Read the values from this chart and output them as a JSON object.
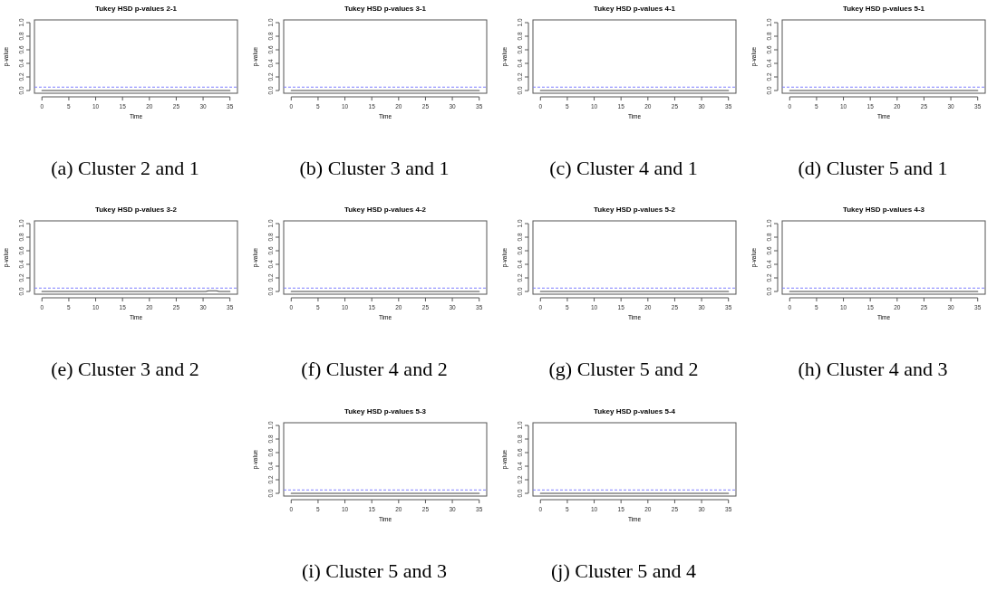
{
  "chart_data": [
    {
      "type": "line",
      "title": "Tukey HSD p-values 2-1",
      "xlabel": "Time",
      "ylabel": "p-value",
      "annotations": [
        "(a) Cluster 2 and 1"
      ],
      "xlim": [
        -1.4,
        36.4
      ],
      "ylim": [
        -0.04,
        1.04
      ],
      "xticks": [
        0,
        5,
        10,
        15,
        20,
        25,
        30,
        35
      ],
      "yticks": [
        {
          "value": 0,
          "label": "0.0"
        },
        {
          "value": 0.2,
          "label": "0.2"
        },
        {
          "value": 0.4,
          "label": "0.4"
        },
        {
          "value": 0.6,
          "label": "0.6"
        },
        {
          "value": 0.8,
          "label": "0.8"
        },
        {
          "value": 1,
          "label": "1.0"
        }
      ],
      "series": [
        {
          "color": "#444444",
          "x": [
            0,
            35
          ],
          "values": [
            0,
            0
          ]
        }
      ],
      "ref_lines": [
        {
          "axis": "y",
          "value": 0.05,
          "color": "#7f7fff",
          "line_style": "dashed"
        }
      ]
    },
    {
      "type": "line",
      "title": "Tukey HSD p-values 3-1",
      "xlabel": "Time",
      "ylabel": "p-value",
      "annotations": [
        "(b) Cluster 3 and 1"
      ],
      "xlim": [
        -1.4,
        36.4
      ],
      "ylim": [
        -0.04,
        1.04
      ],
      "xticks": [
        0,
        5,
        10,
        15,
        20,
        25,
        30,
        35
      ],
      "yticks": [
        {
          "value": 0,
          "label": "0.0"
        },
        {
          "value": 0.2,
          "label": "0.2"
        },
        {
          "value": 0.4,
          "label": "0.4"
        },
        {
          "value": 0.6,
          "label": "0.6"
        },
        {
          "value": 0.8,
          "label": "0.8"
        },
        {
          "value": 1,
          "label": "1.0"
        }
      ],
      "series": [
        {
          "color": "#444444",
          "x": [
            0,
            35
          ],
          "values": [
            0,
            0
          ]
        }
      ],
      "ref_lines": [
        {
          "axis": "y",
          "value": 0.05,
          "color": "#7f7fff",
          "line_style": "dashed"
        }
      ]
    },
    {
      "type": "line",
      "title": "Tukey HSD p-values 4-1",
      "xlabel": "Time",
      "ylabel": "p-value",
      "annotations": [
        "(c) Cluster 4 and 1"
      ],
      "xlim": [
        -1.4,
        36.4
      ],
      "ylim": [
        -0.04,
        1.04
      ],
      "xticks": [
        0,
        5,
        10,
        15,
        20,
        25,
        30,
        35
      ],
      "yticks": [
        {
          "value": 0,
          "label": "0.0"
        },
        {
          "value": 0.2,
          "label": "0.2"
        },
        {
          "value": 0.4,
          "label": "0.4"
        },
        {
          "value": 0.6,
          "label": "0.6"
        },
        {
          "value": 0.8,
          "label": "0.8"
        },
        {
          "value": 1,
          "label": "1.0"
        }
      ],
      "series": [
        {
          "color": "#444444",
          "x": [
            0,
            35
          ],
          "values": [
            0,
            0
          ]
        }
      ],
      "ref_lines": [
        {
          "axis": "y",
          "value": 0.05,
          "color": "#7f7fff",
          "line_style": "dashed"
        }
      ]
    },
    {
      "type": "line",
      "title": "Tukey HSD p-values 5-1",
      "xlabel": "Time",
      "ylabel": "p-value",
      "annotations": [
        "(d) Cluster 5 and 1"
      ],
      "xlim": [
        -1.4,
        36.4
      ],
      "ylim": [
        -0.04,
        1.04
      ],
      "xticks": [
        0,
        5,
        10,
        15,
        20,
        25,
        30,
        35
      ],
      "yticks": [
        {
          "value": 0,
          "label": "0.0"
        },
        {
          "value": 0.2,
          "label": "0.2"
        },
        {
          "value": 0.4,
          "label": "0.4"
        },
        {
          "value": 0.6,
          "label": "0.6"
        },
        {
          "value": 0.8,
          "label": "0.8"
        },
        {
          "value": 1,
          "label": "1.0"
        }
      ],
      "series": [
        {
          "color": "#444444",
          "x": [
            0,
            35
          ],
          "values": [
            0,
            0
          ]
        }
      ],
      "ref_lines": [
        {
          "axis": "y",
          "value": 0.05,
          "color": "#7f7fff",
          "line_style": "dashed"
        }
      ]
    },
    {
      "type": "line",
      "title": "Tukey HSD p-values 3-2",
      "xlabel": "Time",
      "ylabel": "p-value",
      "annotations": [
        "(e) Cluster 3 and 2"
      ],
      "xlim": [
        -1.4,
        36.4
      ],
      "ylim": [
        -0.04,
        1.04
      ],
      "xticks": [
        0,
        5,
        10,
        15,
        20,
        25,
        30,
        35
      ],
      "yticks": [
        {
          "value": 0,
          "label": "0.0"
        },
        {
          "value": 0.2,
          "label": "0.2"
        },
        {
          "value": 0.4,
          "label": "0.4"
        },
        {
          "value": 0.6,
          "label": "0.6"
        },
        {
          "value": 0.8,
          "label": "0.8"
        },
        {
          "value": 1,
          "label": "1.0"
        }
      ],
      "series": [
        {
          "color": "#444444",
          "x": [
            0,
            30.5,
            31,
            32.5,
            33,
            35
          ],
          "values": [
            0,
            0,
            0.01,
            0.01,
            0,
            0
          ]
        }
      ],
      "ref_lines": [
        {
          "axis": "y",
          "value": 0.05,
          "color": "#7f7fff",
          "line_style": "dashed"
        }
      ]
    },
    {
      "type": "line",
      "title": "Tukey HSD p-values 4-2",
      "xlabel": "Time",
      "ylabel": "p-value",
      "annotations": [
        "(f) Cluster 4 and 2"
      ],
      "xlim": [
        -1.4,
        36.4
      ],
      "ylim": [
        -0.04,
        1.04
      ],
      "xticks": [
        0,
        5,
        10,
        15,
        20,
        25,
        30,
        35
      ],
      "yticks": [
        {
          "value": 0,
          "label": "0.0"
        },
        {
          "value": 0.2,
          "label": "0.2"
        },
        {
          "value": 0.4,
          "label": "0.4"
        },
        {
          "value": 0.6,
          "label": "0.6"
        },
        {
          "value": 0.8,
          "label": "0.8"
        },
        {
          "value": 1,
          "label": "1.0"
        }
      ],
      "series": [
        {
          "color": "#444444",
          "x": [
            0,
            35
          ],
          "values": [
            0,
            0
          ]
        }
      ],
      "ref_lines": [
        {
          "axis": "y",
          "value": 0.05,
          "color": "#7f7fff",
          "line_style": "dashed"
        }
      ]
    },
    {
      "type": "line",
      "title": "Tukey HSD p-values 5-2",
      "xlabel": "Time",
      "ylabel": "p-value",
      "annotations": [
        "(g) Cluster 5 and 2"
      ],
      "xlim": [
        -1.4,
        36.4
      ],
      "ylim": [
        -0.04,
        1.04
      ],
      "xticks": [
        0,
        5,
        10,
        15,
        20,
        25,
        30,
        35
      ],
      "yticks": [
        {
          "value": 0,
          "label": "0.0"
        },
        {
          "value": 0.2,
          "label": "0.2"
        },
        {
          "value": 0.4,
          "label": "0.4"
        },
        {
          "value": 0.6,
          "label": "0.6"
        },
        {
          "value": 0.8,
          "label": "0.8"
        },
        {
          "value": 1,
          "label": "1.0"
        }
      ],
      "series": [
        {
          "color": "#444444",
          "x": [
            0,
            35
          ],
          "values": [
            0,
            0
          ]
        }
      ],
      "ref_lines": [
        {
          "axis": "y",
          "value": 0.05,
          "color": "#7f7fff",
          "line_style": "dashed"
        }
      ]
    },
    {
      "type": "line",
      "title": "Tukey HSD p-values 4-3",
      "xlabel": "Time",
      "ylabel": "p-value",
      "annotations": [
        "(h) Cluster 4 and 3"
      ],
      "xlim": [
        -1.4,
        36.4
      ],
      "ylim": [
        -0.04,
        1.04
      ],
      "xticks": [
        0,
        5,
        10,
        15,
        20,
        25,
        30,
        35
      ],
      "yticks": [
        {
          "value": 0,
          "label": "0.0"
        },
        {
          "value": 0.2,
          "label": "0.2"
        },
        {
          "value": 0.4,
          "label": "0.4"
        },
        {
          "value": 0.6,
          "label": "0.6"
        },
        {
          "value": 0.8,
          "label": "0.8"
        },
        {
          "value": 1,
          "label": "1.0"
        }
      ],
      "series": [
        {
          "color": "#444444",
          "x": [
            0,
            35
          ],
          "values": [
            0,
            0
          ]
        }
      ],
      "ref_lines": [
        {
          "axis": "y",
          "value": 0.05,
          "color": "#7f7fff",
          "line_style": "dashed"
        }
      ]
    },
    {
      "type": "line",
      "title": "Tukey HSD p-values 5-3",
      "xlabel": "Time",
      "ylabel": "p-value",
      "annotations": [
        "(i) Cluster 5 and 3"
      ],
      "xlim": [
        -1.4,
        36.4
      ],
      "ylim": [
        -0.04,
        1.04
      ],
      "xticks": [
        0,
        5,
        10,
        15,
        20,
        25,
        30,
        35
      ],
      "yticks": [
        {
          "value": 0,
          "label": "0.0"
        },
        {
          "value": 0.2,
          "label": "0.2"
        },
        {
          "value": 0.4,
          "label": "0.4"
        },
        {
          "value": 0.6,
          "label": "0.6"
        },
        {
          "value": 0.8,
          "label": "0.8"
        },
        {
          "value": 1,
          "label": "1.0"
        }
      ],
      "series": [
        {
          "color": "#444444",
          "x": [
            0,
            35
          ],
          "values": [
            0,
            0
          ]
        }
      ],
      "ref_lines": [
        {
          "axis": "y",
          "value": 0.05,
          "color": "#7f7fff",
          "line_style": "dashed"
        }
      ]
    },
    {
      "type": "line",
      "title": "Tukey HSD p-values 5-4",
      "xlabel": "Time",
      "ylabel": "p-value",
      "annotations": [
        "(j) Cluster 5 and 4"
      ],
      "xlim": [
        -1.4,
        36.4
      ],
      "ylim": [
        -0.04,
        1.04
      ],
      "xticks": [
        0,
        5,
        10,
        15,
        20,
        25,
        30,
        35
      ],
      "yticks": [
        {
          "value": 0,
          "label": "0.0"
        },
        {
          "value": 0.2,
          "label": "0.2"
        },
        {
          "value": 0.4,
          "label": "0.4"
        },
        {
          "value": 0.6,
          "label": "0.6"
        },
        {
          "value": 0.8,
          "label": "0.8"
        },
        {
          "value": 1,
          "label": "1.0"
        }
      ],
      "series": [
        {
          "color": "#444444",
          "x": [
            0,
            35
          ],
          "values": [
            0,
            0
          ]
        }
      ],
      "ref_lines": [
        {
          "axis": "y",
          "value": 0.05,
          "color": "#7f7fff",
          "line_style": "dashed"
        }
      ]
    }
  ]
}
